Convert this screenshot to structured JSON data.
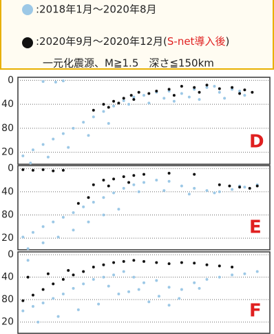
{
  "legend": {
    "item1": ":2018年1月～2020年8月",
    "item2_a": ":2020年9月～2020年12月(",
    "item2_red": "S-net導入後",
    "item2_b": ")",
    "note": "一元化震源、M≧1.5　深さ≦150km"
  },
  "chart_data": [
    {
      "type": "scatter",
      "label": "D",
      "ylim": [
        -5,
        140
      ],
      "xlim": [
        0,
        100
      ],
      "yticks": [
        0,
        40,
        80,
        {
          "value": 120,
          "label": "20"
        }
      ],
      "grid": true,
      "series": [
        {
          "color": "#9cc8e6",
          "x": [
            2,
            6,
            10,
            14,
            18,
            22,
            26,
            30,
            34,
            38,
            42,
            46,
            50,
            55,
            60,
            65,
            70,
            75,
            80,
            85,
            90,
            5,
            12,
            20,
            28,
            36,
            58,
            68,
            78,
            88,
            10,
            15,
            18,
            62,
            72,
            82,
            52,
            44
          ],
          "y": [
            126,
            116,
            107,
            98,
            89,
            80,
            70,
            61,
            52,
            43,
            34,
            28,
            25,
            20,
            18,
            22,
            15,
            12,
            20,
            15,
            25,
            138,
            128,
            112,
            92,
            72,
            30,
            28,
            10,
            18,
            2,
            3,
            1,
            35,
            32,
            30,
            38,
            40
          ]
        },
        {
          "color": "#111111",
          "x": [
            30,
            34,
            38,
            42,
            45,
            48,
            52,
            55,
            60,
            65,
            70,
            75,
            80,
            85,
            90,
            93,
            40,
            46,
            62,
            88,
            36,
            72
          ],
          "y": [
            50,
            40,
            35,
            30,
            25,
            20,
            22,
            18,
            15,
            10,
            12,
            8,
            14,
            12,
            16,
            20,
            38,
            32,
            25,
            22,
            45,
            20
          ]
        }
      ]
    },
    {
      "type": "scatter",
      "label": "E",
      "ylim": [
        -5,
        140
      ],
      "xlim": [
        0,
        100
      ],
      "yticks": [
        0,
        40,
        80,
        {
          "value": 120,
          "label": "20"
        }
      ],
      "grid": true,
      "series": [
        {
          "color": "#9cc8e6",
          "x": [
            2,
            6,
            10,
            14,
            18,
            22,
            26,
            30,
            34,
            38,
            42,
            46,
            50,
            55,
            60,
            65,
            70,
            75,
            80,
            85,
            90,
            4,
            10,
            16,
            22,
            28,
            34,
            40,
            58,
            68,
            78,
            88,
            95,
            48
          ],
          "y": [
            118,
            110,
            100,
            92,
            84,
            76,
            66,
            58,
            50,
            42,
            34,
            28,
            24,
            20,
            22,
            30,
            34,
            38,
            40,
            36,
            32,
            138,
            128,
            118,
            106,
            92,
            80,
            70,
            38,
            44,
            42,
            30,
            28,
            40
          ]
        },
        {
          "color": "#111111",
          "x": [
            2,
            6,
            10,
            14,
            18,
            30,
            34,
            38,
            42,
            46,
            50,
            36,
            44,
            80,
            84,
            88,
            92,
            95,
            60,
            70,
            24,
            28
          ],
          "y": [
            2,
            3,
            2,
            4,
            3,
            28,
            20,
            18,
            14,
            12,
            10,
            30,
            24,
            28,
            30,
            32,
            34,
            30,
            8,
            10,
            60,
            50
          ]
        }
      ]
    },
    {
      "type": "scatter",
      "label": "F",
      "ylim": [
        -5,
        140
      ],
      "xlim": [
        0,
        100
      ],
      "yticks": [
        0,
        40,
        80,
        {
          "value": 120,
          "label": "20"
        }
      ],
      "grid": true,
      "series": [
        {
          "color": "#9cc8e6",
          "x": [
            2,
            6,
            10,
            14,
            18,
            22,
            26,
            30,
            34,
            38,
            42,
            46,
            50,
            55,
            60,
            65,
            70,
            75,
            80,
            85,
            90,
            95,
            8,
            16,
            24,
            32,
            40,
            48,
            56,
            64,
            72,
            36,
            44,
            52,
            60,
            4
          ],
          "y": [
            100,
            92,
            86,
            78,
            70,
            60,
            52,
            44,
            40,
            36,
            30,
            40,
            50,
            46,
            58,
            62,
            50,
            44,
            40,
            36,
            34,
            30,
            120,
            110,
            98,
            88,
            70,
            62,
            74,
            78,
            60,
            56,
            66,
            84,
            90,
            10
          ]
        },
        {
          "color": "#111111",
          "x": [
            2,
            6,
            10,
            14,
            18,
            22,
            26,
            30,
            34,
            38,
            42,
            46,
            50,
            55,
            60,
            65,
            70,
            75,
            80,
            85,
            4,
            12,
            20
          ],
          "y": [
            82,
            72,
            62,
            52,
            44,
            36,
            30,
            22,
            18,
            14,
            12,
            10,
            12,
            14,
            16,
            14,
            15,
            18,
            20,
            22,
            40,
            34,
            28
          ]
        }
      ]
    }
  ]
}
